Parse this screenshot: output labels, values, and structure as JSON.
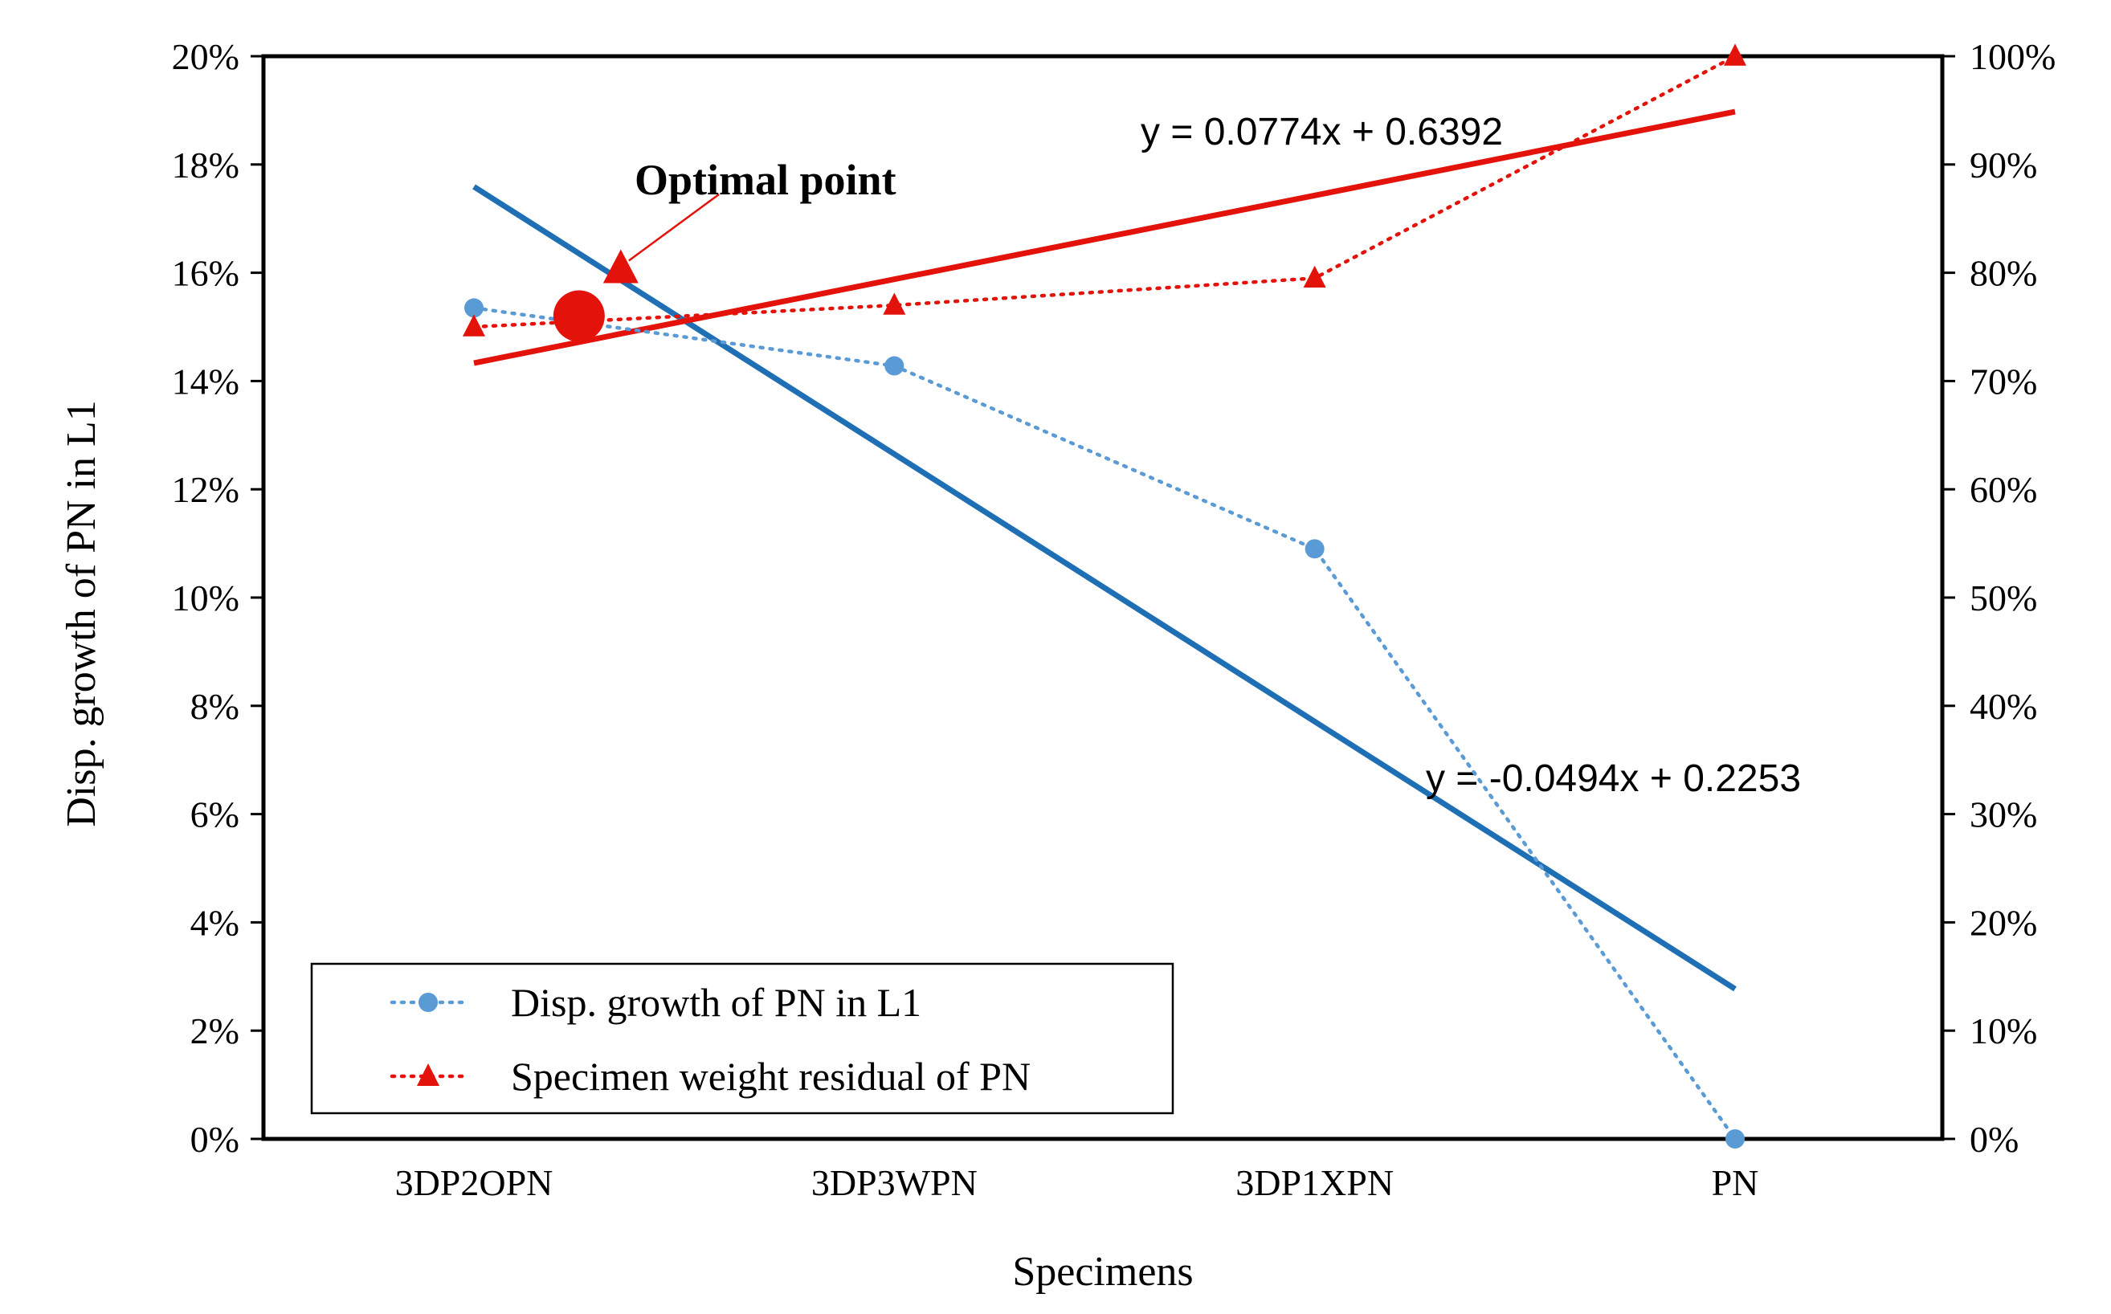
{
  "chart_data": {
    "type": "line",
    "categories": [
      "3DP2OPN",
      "3DP3WPN",
      "3DP1XPN",
      "PN"
    ],
    "x_positions": [
      1,
      2,
      3,
      4
    ],
    "xlabel": "Specimens",
    "ylabel": "Disp. growth of PN in L1",
    "y_left": {
      "min": 0,
      "max": 0.2,
      "step": 0.02,
      "tick_labels": [
        "0%",
        "2%",
        "4%",
        "6%",
        "8%",
        "10%",
        "12%",
        "14%",
        "16%",
        "18%",
        "20%"
      ]
    },
    "y_right": {
      "min": 0,
      "max": 1.0,
      "step": 0.1,
      "tick_labels": [
        "0%",
        "10%",
        "20%",
        "30%",
        "40%",
        "50%",
        "60%",
        "70%",
        "80%",
        "90%",
        "100%"
      ]
    },
    "grid": false,
    "legend_position": "bottom-left",
    "series": [
      {
        "name": "Disp. growth of PN in L1",
        "axis": "left",
        "marker": "circle",
        "line_style": "dotted",
        "color": "#5B9BD5",
        "values": [
          0.1535,
          0.1428,
          0.109,
          0.0
        ]
      },
      {
        "name": "Specimen weight residual of PN",
        "axis": "right",
        "marker": "triangle",
        "line_style": "dotted",
        "color": "#E3120B",
        "values": [
          0.75,
          0.77,
          0.795,
          1.0
        ]
      }
    ],
    "trendlines": [
      {
        "for_series": "Disp. growth of PN in L1",
        "axis": "left",
        "slope": -0.0494,
        "intercept": 0.2253,
        "equation": "y = -0.0494x + 0.2253",
        "color": "#1F6FB5"
      },
      {
        "for_series": "Specimen weight residual of PN",
        "axis": "right",
        "slope": 0.0774,
        "intercept": 0.6392,
        "equation": "y = 0.0774x + 0.6392",
        "color": "#E3120B"
      }
    ],
    "annotations": [
      {
        "text": "Optimal point",
        "x": 1.25,
        "y_left": 0.152
      }
    ]
  }
}
